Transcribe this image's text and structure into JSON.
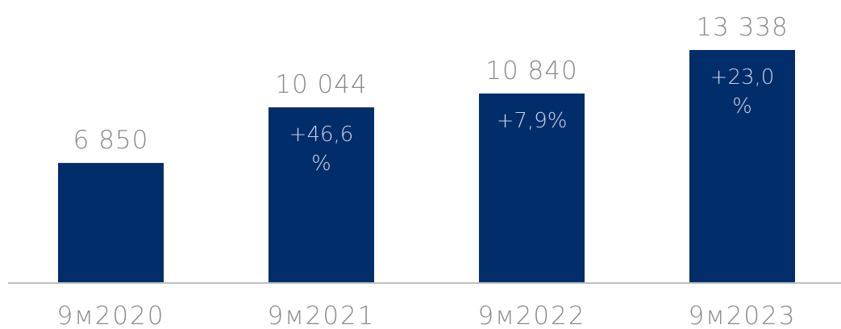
{
  "chart_data": {
    "type": "bar",
    "categories": [
      "9м2020",
      "9м2021",
      "9м2022",
      "9м2023"
    ],
    "values": [
      6850,
      10044,
      10840,
      13338
    ],
    "value_labels": [
      "6 850",
      "10 044",
      "10 840",
      "13 338"
    ],
    "growth_labels": [
      [],
      [
        "+46,6",
        "%"
      ],
      [
        "+7,9%"
      ],
      [
        "+23,0",
        "%"
      ]
    ],
    "title": "",
    "xlabel": "",
    "ylabel": "",
    "ylim": [
      0,
      13338
    ],
    "grid": false,
    "legend": "none",
    "colors": {
      "bar": "#012d6b",
      "axis": "#bfbfbf",
      "value_text": "#8a8a8a",
      "category_text": "#8a8a8a",
      "growth_text": "#c9d1e3"
    }
  }
}
